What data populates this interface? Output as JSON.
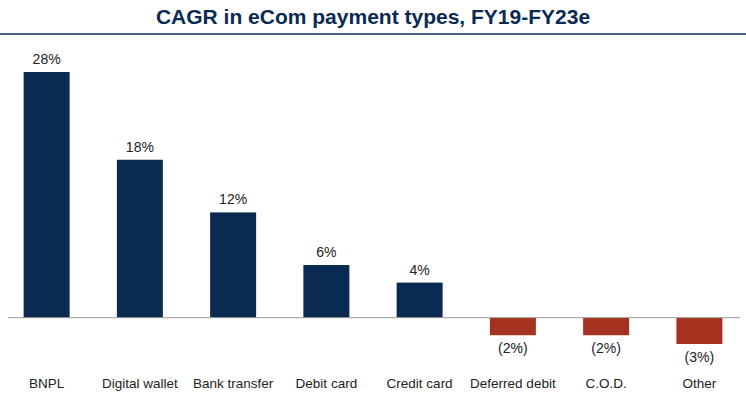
{
  "chart_data": {
    "type": "bar",
    "title": "CAGR in eCom payment types, FY19-FY23e",
    "categories": [
      "BNPL",
      "Digital wallet",
      "Bank transfer",
      "Debit card",
      "Credit card",
      "Deferred debit",
      "C.O.D.",
      "Other"
    ],
    "values": [
      28,
      18,
      12,
      6,
      4,
      -2,
      -2,
      -3
    ],
    "value_labels": [
      "28%",
      "18%",
      "12%",
      "6%",
      "4%",
      "(2%)",
      "(2%)",
      "(3%)"
    ],
    "colors": [
      "#0b2a52",
      "#0b2a52",
      "#0b2a52",
      "#0b2a52",
      "#0b2a52",
      "#a5311f",
      "#a5311f",
      "#a5311f"
    ],
    "ylim": [
      -3,
      28
    ],
    "data_labels": true,
    "tick_labels": "x",
    "grid": false
  }
}
